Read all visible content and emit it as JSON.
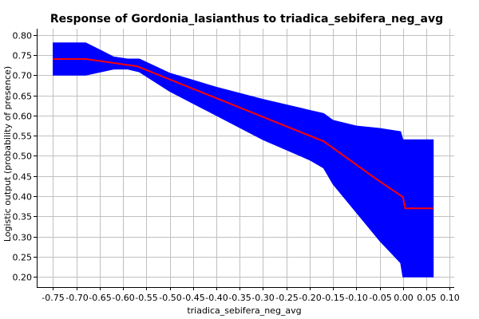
{
  "chart_data": {
    "type": "line",
    "title": "Response of Gordonia_lasianthus to triadica_sebifera_neg_avg",
    "xlabel": "triadica_sebifera_neg_avg",
    "ylabel": "Logistic output (probability of presence)",
    "xlim": [
      -0.785,
      0.11
    ],
    "ylim": [
      0.175,
      0.815
    ],
    "x_ticks": [
      -0.75,
      -0.7,
      -0.65,
      -0.6,
      -0.55,
      -0.5,
      -0.45,
      -0.4,
      -0.35,
      -0.3,
      -0.25,
      -0.2,
      -0.15,
      -0.1,
      -0.05,
      0.0,
      0.05,
      0.1
    ],
    "x_tick_labels": [
      "-0.75",
      "-0.70",
      "-0.65",
      "-0.60",
      "-0.55",
      "-0.50",
      "-0.45",
      "-0.40",
      "-0.35",
      "-0.30",
      "-0.25",
      "-0.20",
      "-0.15",
      "-0.10",
      "-0.05",
      "0.00",
      "0.05",
      "0.10"
    ],
    "y_ticks": [
      0.2,
      0.25,
      0.3,
      0.35,
      0.4,
      0.45,
      0.5,
      0.55,
      0.6,
      0.65,
      0.7,
      0.75,
      0.8
    ],
    "y_tick_labels": [
      "0.20",
      "0.25",
      "0.30",
      "0.35",
      "0.40",
      "0.45",
      "0.50",
      "0.55",
      "0.60",
      "0.65",
      "0.70",
      "0.75",
      "0.80"
    ],
    "grid": true,
    "colors": {
      "band": "#0000ff",
      "line": "#ff0000"
    },
    "series": [
      {
        "x": [
          -0.75,
          -0.68,
          -0.57,
          -0.17,
          -0.06,
          0.0,
          0.005,
          0.065
        ],
        "y": [
          0.74,
          0.74,
          0.722,
          0.536,
          0.445,
          0.398,
          0.37,
          0.37
        ]
      }
    ],
    "band": {
      "x": [
        -0.75,
        -0.68,
        -0.62,
        -0.59,
        -0.565,
        -0.5,
        -0.4,
        -0.3,
        -0.2,
        -0.17,
        -0.15,
        -0.1,
        -0.05,
        -0.005,
        0.0,
        0.005,
        0.065
      ],
      "upper": [
        0.78,
        0.78,
        0.745,
        0.74,
        0.74,
        0.705,
        0.67,
        0.64,
        0.613,
        0.605,
        0.588,
        0.574,
        0.568,
        0.56,
        0.54,
        0.54,
        0.54
      ],
      "lower": [
        0.7,
        0.7,
        0.715,
        0.715,
        0.708,
        0.66,
        0.6,
        0.54,
        0.49,
        0.47,
        0.43,
        0.36,
        0.29,
        0.235,
        0.2,
        0.2,
        0.2
      ]
    }
  }
}
